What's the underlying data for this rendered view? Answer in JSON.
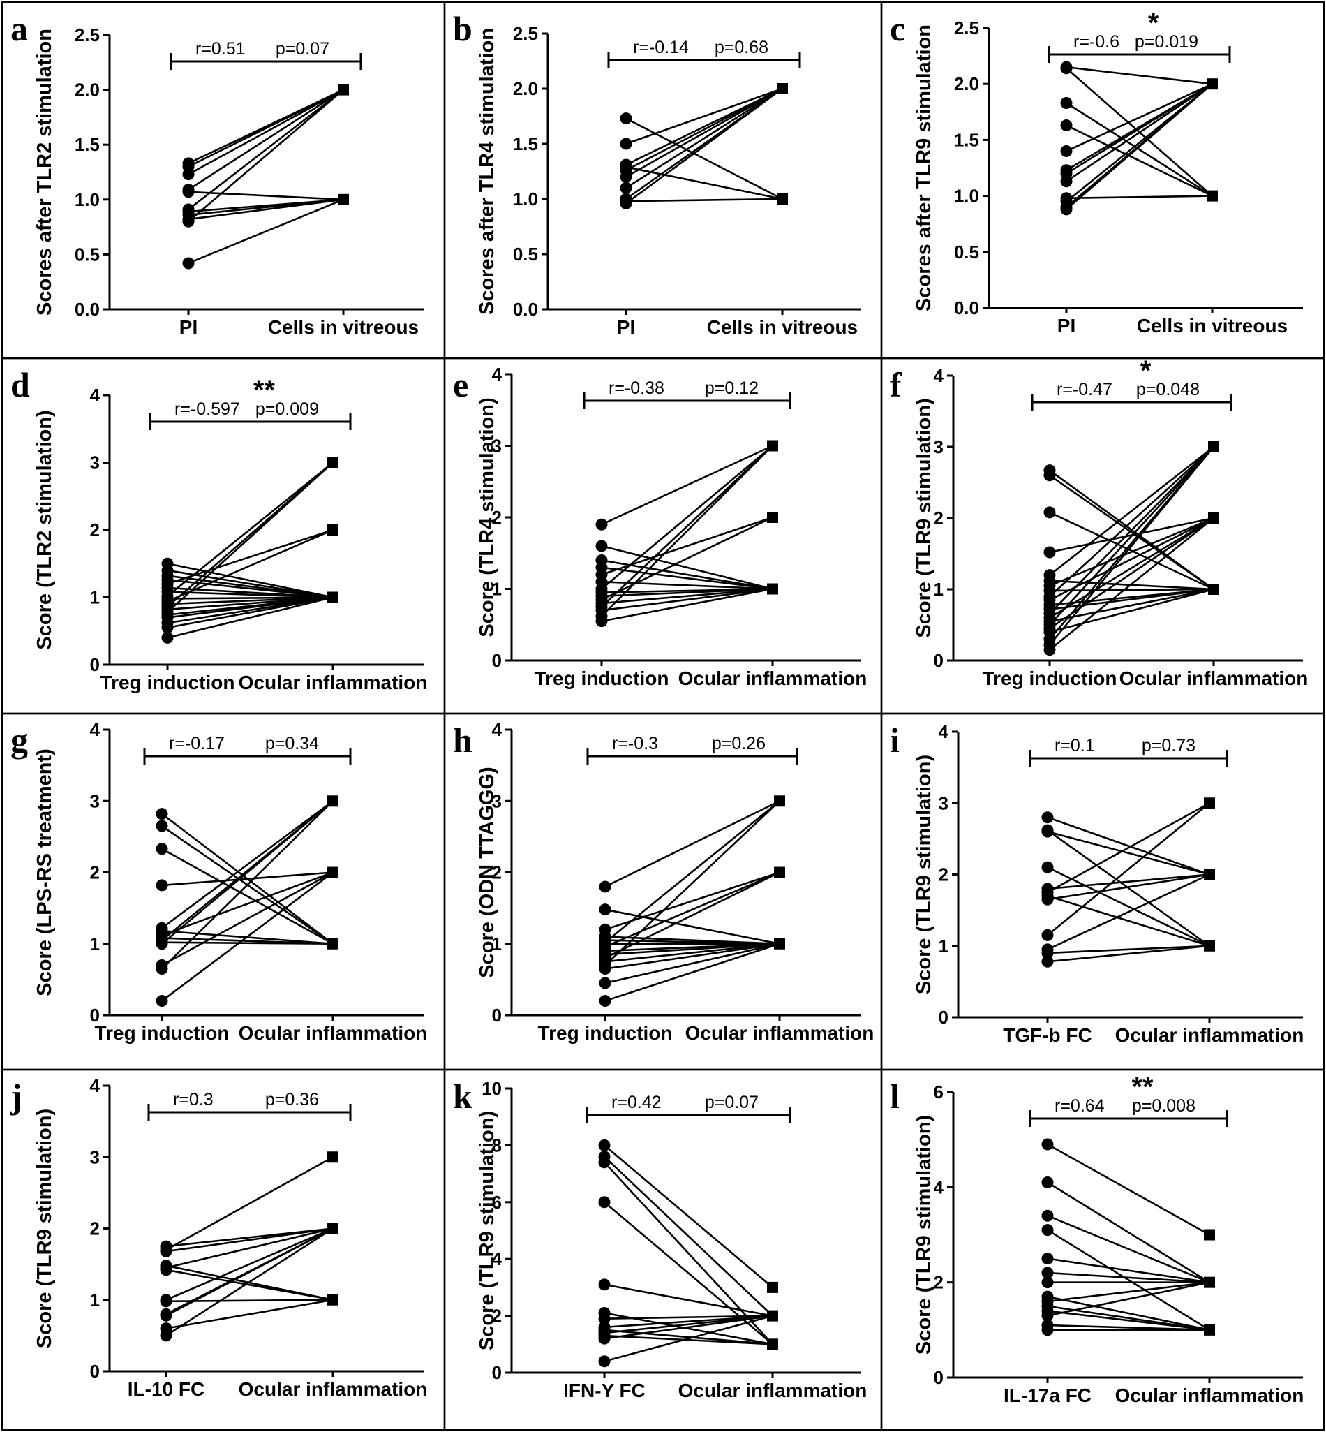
{
  "chart_data": [
    {
      "id": "a",
      "type": "line",
      "letter": "a",
      "ylabel": "Scores after TLR2 stimulation",
      "categories": [
        "PI",
        "Cells in vitreous"
      ],
      "ylim": [
        0,
        2.5
      ],
      "yticks": [
        "0.0",
        "0.5",
        "1.0",
        "1.5",
        "2.0",
        "2.5"
      ],
      "annotation": {
        "r": "r=0.51",
        "p": "p=0.07",
        "stars": ""
      },
      "pairs": [
        [
          1.33,
          2
        ],
        [
          1.3,
          2
        ],
        [
          1.23,
          2
        ],
        [
          1.09,
          2
        ],
        [
          1.07,
          1
        ],
        [
          0.91,
          2
        ],
        [
          0.89,
          1
        ],
        [
          0.86,
          1
        ],
        [
          0.82,
          1
        ],
        [
          0.8,
          2
        ],
        [
          0.42,
          1
        ]
      ]
    },
    {
      "id": "b",
      "type": "line",
      "letter": "b",
      "ylabel": "Scores after TLR4 stimulation",
      "categories": [
        "PI",
        "Cells in vitreous"
      ],
      "ylim": [
        0,
        2.5
      ],
      "yticks": [
        "0.0",
        "0.5",
        "1.0",
        "1.5",
        "2.0",
        "2.5"
      ],
      "annotation": {
        "r": "r=-0.14",
        "p": "p=0.68",
        "stars": ""
      },
      "pairs": [
        [
          1.73,
          1
        ],
        [
          1.5,
          2
        ],
        [
          1.31,
          2
        ],
        [
          1.29,
          1
        ],
        [
          1.26,
          2
        ],
        [
          1.2,
          2
        ],
        [
          1.1,
          2
        ],
        [
          1.0,
          2
        ],
        [
          0.98,
          1
        ],
        [
          0.96,
          2
        ]
      ]
    },
    {
      "id": "c",
      "type": "line",
      "letter": "c",
      "ylabel": "Scores after TLR9 stimulation",
      "categories": [
        "PI",
        "Cells in vitreous"
      ],
      "ylim": [
        0,
        2.5
      ],
      "yticks": [
        "0.0",
        "0.5",
        "1.0",
        "1.5",
        "2.0",
        "2.5"
      ],
      "annotation": {
        "r": "r=-0.6",
        "p": "p=0.019",
        "stars": "*"
      },
      "pairs": [
        [
          2.15,
          2
        ],
        [
          2.14,
          1
        ],
        [
          1.83,
          1
        ],
        [
          1.63,
          1
        ],
        [
          1.4,
          2
        ],
        [
          1.23,
          2
        ],
        [
          1.2,
          2
        ],
        [
          1.13,
          2
        ],
        [
          0.98,
          1
        ],
        [
          0.95,
          2
        ],
        [
          0.9,
          2
        ],
        [
          0.88,
          2
        ]
      ]
    },
    {
      "id": "d",
      "type": "line",
      "letter": "d",
      "ylabel": "Score (TLR2 stimulation)",
      "categories": [
        "Treg induction",
        "Ocular inflammation"
      ],
      "ylim": [
        0,
        4
      ],
      "yticks": [
        "0",
        "1",
        "2",
        "3",
        "4"
      ],
      "annotation": {
        "r": "r=-0.597",
        "p": "p=0.009",
        "stars": "**"
      },
      "pairs": [
        [
          1.5,
          1
        ],
        [
          1.4,
          1
        ],
        [
          1.32,
          1
        ],
        [
          1.26,
          1
        ],
        [
          1.2,
          2
        ],
        [
          1.14,
          1
        ],
        [
          1.08,
          1
        ],
        [
          1.02,
          3
        ],
        [
          0.98,
          1
        ],
        [
          0.94,
          2
        ],
        [
          0.9,
          1
        ],
        [
          0.86,
          3
        ],
        [
          0.82,
          1
        ],
        [
          0.78,
          3
        ],
        [
          0.74,
          1
        ],
        [
          0.7,
          1
        ],
        [
          0.62,
          1
        ],
        [
          0.55,
          1
        ],
        [
          0.4,
          1
        ]
      ]
    },
    {
      "id": "e",
      "type": "line",
      "letter": "e",
      "ylabel": "Score (TLR4 stimulation)",
      "categories": [
        "Treg induction",
        "Ocular inflammation"
      ],
      "ylim": [
        0,
        4
      ],
      "yticks": [
        "0",
        "1",
        "2",
        "3",
        "4"
      ],
      "annotation": {
        "r": "r=-0.38",
        "p": "p=0.12",
        "stars": ""
      },
      "pairs": [
        [
          1.9,
          3
        ],
        [
          1.6,
          1
        ],
        [
          1.4,
          1
        ],
        [
          1.3,
          1
        ],
        [
          1.2,
          2
        ],
        [
          1.1,
          1
        ],
        [
          1.0,
          3
        ],
        [
          0.95,
          1
        ],
        [
          0.9,
          1
        ],
        [
          0.85,
          2
        ],
        [
          0.8,
          1
        ],
        [
          0.75,
          3
        ],
        [
          0.7,
          1
        ],
        [
          0.62,
          3
        ],
        [
          0.55,
          1
        ]
      ]
    },
    {
      "id": "f",
      "type": "line",
      "letter": "f",
      "ylabel": "Score (TLR9 stimulation)",
      "categories": [
        "Treg induction",
        "Ocular inflammation"
      ],
      "ylim": [
        0,
        4
      ],
      "yticks": [
        "0",
        "1",
        "2",
        "3",
        "4"
      ],
      "annotation": {
        "r": "r=-0.47",
        "p": "p=0.048",
        "stars": "*"
      },
      "pairs": [
        [
          2.67,
          1
        ],
        [
          2.6,
          1
        ],
        [
          2.08,
          1
        ],
        [
          1.52,
          2
        ],
        [
          1.2,
          3
        ],
        [
          1.12,
          1
        ],
        [
          1.05,
          2
        ],
        [
          0.98,
          1
        ],
        [
          0.9,
          3
        ],
        [
          0.85,
          2
        ],
        [
          0.78,
          1
        ],
        [
          0.72,
          1
        ],
        [
          0.66,
          3
        ],
        [
          0.6,
          2
        ],
        [
          0.55,
          1
        ],
        [
          0.5,
          3
        ],
        [
          0.45,
          2
        ],
        [
          0.4,
          1
        ],
        [
          0.3,
          3
        ],
        [
          0.22,
          3
        ],
        [
          0.15,
          2
        ]
      ]
    },
    {
      "id": "g",
      "type": "line",
      "letter": "g",
      "ylabel": "Score (LPS-RS treatment)",
      "categories": [
        "Treg induction",
        "Ocular inflammation"
      ],
      "ylim": [
        0,
        4
      ],
      "yticks": [
        "0",
        "1",
        "2",
        "3",
        "4"
      ],
      "annotation": {
        "r": "r=-0.17",
        "p": "p=0.34",
        "stars": ""
      },
      "pairs": [
        [
          2.82,
          1
        ],
        [
          2.65,
          1
        ],
        [
          2.33,
          1
        ],
        [
          1.82,
          2
        ],
        [
          1.22,
          3
        ],
        [
          1.18,
          1
        ],
        [
          1.12,
          2
        ],
        [
          1.08,
          1
        ],
        [
          1.05,
          3
        ],
        [
          1.02,
          1
        ],
        [
          1.0,
          3
        ],
        [
          0.7,
          2
        ],
        [
          0.65,
          3
        ],
        [
          0.2,
          2
        ]
      ]
    },
    {
      "id": "h",
      "type": "line",
      "letter": "h",
      "ylabel": "Score (ODN TTAGGG)",
      "categories": [
        "Treg induction",
        "Ocular inflammation"
      ],
      "ylim": [
        0,
        4
      ],
      "yticks": [
        "0",
        "1",
        "2",
        "3",
        "4"
      ],
      "annotation": {
        "r": "r=-0.3",
        "p": "p=0.26",
        "stars": ""
      },
      "pairs": [
        [
          1.8,
          3
        ],
        [
          1.48,
          1
        ],
        [
          1.2,
          2
        ],
        [
          1.1,
          1
        ],
        [
          1.05,
          1
        ],
        [
          1.02,
          3
        ],
        [
          1.0,
          1
        ],
        [
          0.96,
          2
        ],
        [
          0.9,
          1
        ],
        [
          0.85,
          1
        ],
        [
          0.8,
          2
        ],
        [
          0.75,
          1
        ],
        [
          0.7,
          3
        ],
        [
          0.65,
          1
        ],
        [
          0.45,
          1
        ],
        [
          0.2,
          1
        ]
      ]
    },
    {
      "id": "i",
      "type": "line",
      "letter": "i",
      "ylabel": "Score (TLR9 stimulation)",
      "categories": [
        "TGF-b FC",
        "Ocular inflammation"
      ],
      "ylim": [
        0,
        4
      ],
      "yticks": [
        "0",
        "1",
        "2",
        "3",
        "4"
      ],
      "annotation": {
        "r": "r=0.1",
        "p": "p=0.73",
        "stars": ""
      },
      "pairs": [
        [
          2.8,
          2
        ],
        [
          2.62,
          1
        ],
        [
          2.6,
          2
        ],
        [
          2.1,
          1
        ],
        [
          1.8,
          2
        ],
        [
          1.75,
          3
        ],
        [
          1.7,
          1
        ],
        [
          1.65,
          2
        ],
        [
          1.15,
          3
        ],
        [
          0.95,
          2
        ],
        [
          0.9,
          1
        ],
        [
          0.78,
          1
        ]
      ]
    },
    {
      "id": "j",
      "type": "line",
      "letter": "j",
      "ylabel": "Score (TLR9 stimulation)",
      "categories": [
        "IL-10 FC",
        "Ocular inflammation"
      ],
      "ylim": [
        0,
        4
      ],
      "yticks": [
        "0",
        "1",
        "2",
        "3",
        "4"
      ],
      "annotation": {
        "r": "r=0.3",
        "p": "p=0.36",
        "stars": ""
      },
      "pairs": [
        [
          1.75,
          2
        ],
        [
          1.7,
          3
        ],
        [
          1.68,
          2
        ],
        [
          1.48,
          1
        ],
        [
          1.45,
          2
        ],
        [
          1.42,
          1
        ],
        [
          1.0,
          2
        ],
        [
          0.98,
          1
        ],
        [
          0.8,
          2
        ],
        [
          0.78,
          2
        ],
        [
          0.6,
          1
        ],
        [
          0.5,
          2
        ]
      ]
    },
    {
      "id": "k",
      "type": "line",
      "letter": "k",
      "ylabel": "Score (TLR9 stimulation)",
      "categories": [
        "IFN-Y FC",
        "Ocular inflammation"
      ],
      "ylim": [
        0,
        10
      ],
      "yticks": [
        "0",
        "2",
        "4",
        "6",
        "8",
        "10"
      ],
      "annotation": {
        "r": "r=0.42",
        "p": "p=0.07",
        "stars": ""
      },
      "pairs": [
        [
          8.0,
          3
        ],
        [
          7.6,
          2
        ],
        [
          7.4,
          1
        ],
        [
          6.0,
          1
        ],
        [
          3.1,
          2
        ],
        [
          2.1,
          1
        ],
        [
          1.9,
          2
        ],
        [
          1.6,
          2
        ],
        [
          1.5,
          1
        ],
        [
          1.4,
          2
        ],
        [
          1.3,
          1
        ],
        [
          1.2,
          2
        ],
        [
          0.4,
          2
        ]
      ]
    },
    {
      "id": "l",
      "type": "line",
      "letter": "l",
      "ylabel": "Score (TLR9 stimulation)",
      "categories": [
        "IL-17a FC",
        "Ocular inflammation"
      ],
      "ylim": [
        0,
        6
      ],
      "yticks": [
        "0",
        "2",
        "4",
        "6"
      ],
      "annotation": {
        "r": "r=0.64",
        "p": "p=0.008",
        "stars": "**"
      },
      "pairs": [
        [
          4.9,
          3
        ],
        [
          4.1,
          2
        ],
        [
          3.4,
          2
        ],
        [
          3.1,
          1
        ],
        [
          2.5,
          2
        ],
        [
          2.2,
          2
        ],
        [
          2.0,
          2
        ],
        [
          1.7,
          1
        ],
        [
          1.6,
          2
        ],
        [
          1.5,
          1
        ],
        [
          1.4,
          1
        ],
        [
          1.3,
          2
        ],
        [
          1.1,
          1
        ],
        [
          1.0,
          1
        ]
      ]
    }
  ]
}
